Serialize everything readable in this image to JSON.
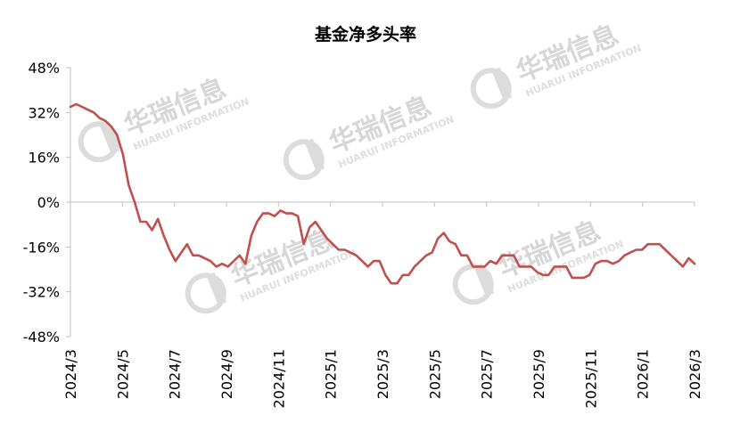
{
  "chart_data": {
    "type": "line",
    "title": "基金净多头率",
    "xlabel": "",
    "ylabel": "",
    "ylim": [
      -48,
      48
    ],
    "yticks": [
      "48%",
      "32%",
      "16%",
      "0%",
      "-16%",
      "-32%",
      "-48%"
    ],
    "ytick_values": [
      48,
      32,
      16,
      0,
      -16,
      -32,
      -48
    ],
    "xticks": [
      "2024/3",
      "2024/5",
      "2024/7",
      "2024/9",
      "2024/11",
      "2025/1",
      "2025/3",
      "2025/5",
      "2025/7",
      "2025/9",
      "2025/11",
      "2026/1",
      "2026/3"
    ],
    "grid": false,
    "legend": "none",
    "line_color": "#c0504d",
    "series": [
      {
        "values": [
          34,
          35,
          34,
          33,
          32,
          30,
          29,
          27,
          24,
          17,
          6,
          0,
          -7,
          -7,
          -10,
          -6,
          -12,
          -17,
          -21,
          -18,
          -15,
          -19,
          -19,
          -20,
          -21,
          -23,
          -22,
          -23,
          -21,
          -19,
          -22,
          -12,
          -7,
          -4,
          -4,
          -5,
          -3,
          -4,
          -4,
          -5,
          -15,
          -9,
          -7,
          -10,
          -13,
          -15,
          -17,
          -17,
          -18,
          -19,
          -21,
          -23,
          -21,
          -21,
          -26,
          -29,
          -29,
          -26,
          -26,
          -23,
          -21,
          -19,
          -18,
          -13,
          -11,
          -14,
          -15,
          -19,
          -19,
          -23,
          -23,
          -23,
          -21,
          -22,
          -19,
          -19,
          -19,
          -23,
          -23,
          -23,
          -25,
          -26,
          -26,
          -23,
          -23,
          -23,
          -27,
          -27,
          -27,
          -26,
          -22,
          -21,
          -21,
          -22,
          -21,
          -19,
          -18,
          -17,
          -17,
          -15,
          -15,
          -15,
          -17,
          -19,
          -21,
          -23,
          -20,
          -22
        ]
      }
    ]
  },
  "watermark": {
    "name": "华瑞信息",
    "sub": "HUARUI INFORMATION"
  }
}
